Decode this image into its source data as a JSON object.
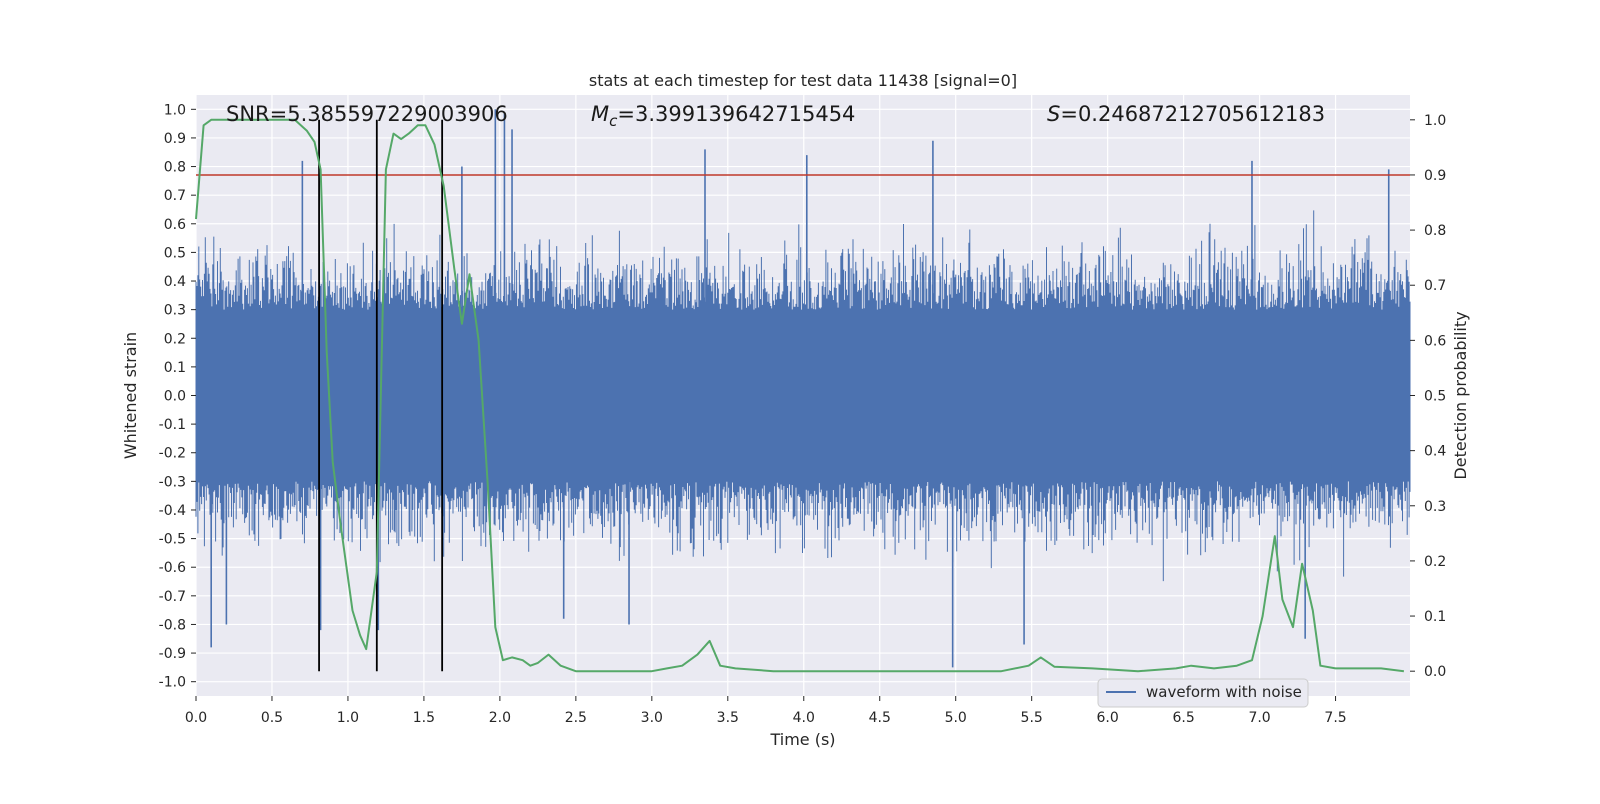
{
  "chart_data": {
    "type": "line",
    "title": "stats at each timestep for test data 11438 [signal=0]",
    "xlabel": "Time (s)",
    "ylabel": "Whitened strain",
    "y2label": "Detection probability",
    "xlim": [
      0.0,
      7.99
    ],
    "ylim": [
      -1.05,
      1.05
    ],
    "y2lim": [
      -0.045,
      1.045
    ],
    "x_ticks": [
      "0.0",
      "0.5",
      "1.0",
      "1.5",
      "2.0",
      "2.5",
      "3.0",
      "3.5",
      "4.0",
      "4.5",
      "5.0",
      "5.5",
      "6.0",
      "6.5",
      "7.0",
      "7.5"
    ],
    "y_ticks": [
      "1.0",
      "0.9",
      "0.8",
      "0.7",
      "0.6",
      "0.5",
      "0.4",
      "0.3",
      "0.2",
      "0.1",
      "0.0",
      "-0.1",
      "-0.2",
      "-0.3",
      "-0.4",
      "-0.5",
      "-0.6",
      "-0.7",
      "-0.8",
      "-0.9",
      "-1.0"
    ],
    "y2_ticks": [
      "1.0",
      "0.9",
      "0.8",
      "0.7",
      "0.6",
      "0.5",
      "0.4",
      "0.3",
      "0.2",
      "0.1",
      "0.0"
    ],
    "grid": true,
    "legend_position": "bottom-right",
    "annotations": {
      "snr": "SNR=5.385597229003906",
      "mc_symbol": "M",
      "mc_subscript": "c",
      "mc_value": "=3.399139642715454",
      "s_symbol": "S",
      "s_value": "=0.24687212705612183"
    },
    "threshold": {
      "y2": 0.9,
      "color": "#c0392b"
    },
    "vertical_lines": {
      "x": [
        0.81,
        1.19,
        1.62
      ],
      "y2_range": [
        0.0,
        1.0
      ],
      "color": "#000000"
    },
    "series": [
      {
        "name": "waveform with noise",
        "axis": "left",
        "color": "#4c72b0",
        "style": "dense noise",
        "samples": 16384,
        "core_band": [
          -0.3,
          0.3
        ],
        "peaks": [
          {
            "x": 0.1,
            "y": -0.88
          },
          {
            "x": 0.2,
            "y": -0.8
          },
          {
            "x": 0.7,
            "y": 0.82
          },
          {
            "x": 0.82,
            "y": -0.82
          },
          {
            "x": 1.2,
            "y": -0.82
          },
          {
            "x": 1.75,
            "y": 0.8
          },
          {
            "x": 1.97,
            "y": 1.0
          },
          {
            "x": 2.03,
            "y": 0.99
          },
          {
            "x": 2.08,
            "y": 0.93
          },
          {
            "x": 2.42,
            "y": -0.78
          },
          {
            "x": 2.85,
            "y": -0.8
          },
          {
            "x": 3.35,
            "y": 0.86
          },
          {
            "x": 4.02,
            "y": 0.84
          },
          {
            "x": 4.85,
            "y": 0.89
          },
          {
            "x": 4.98,
            "y": -0.95
          },
          {
            "x": 5.45,
            "y": -0.87
          },
          {
            "x": 6.95,
            "y": 0.82
          },
          {
            "x": 7.3,
            "y": -0.85
          },
          {
            "x": 7.85,
            "y": 0.79
          }
        ]
      },
      {
        "name": "detection probability",
        "axis": "right",
        "color": "#55a868",
        "points": [
          [
            0.0,
            0.82
          ],
          [
            0.05,
            0.99
          ],
          [
            0.1,
            1.0
          ],
          [
            0.2,
            1.0
          ],
          [
            0.4,
            1.0
          ],
          [
            0.55,
            1.0
          ],
          [
            0.65,
            1.0
          ],
          [
            0.73,
            0.98
          ],
          [
            0.78,
            0.96
          ],
          [
            0.82,
            0.91
          ],
          [
            0.86,
            0.58
          ],
          [
            0.9,
            0.38
          ],
          [
            0.95,
            0.27
          ],
          [
            1.03,
            0.11
          ],
          [
            1.08,
            0.065
          ],
          [
            1.12,
            0.04
          ],
          [
            1.19,
            0.18
          ],
          [
            1.25,
            0.91
          ],
          [
            1.3,
            0.975
          ],
          [
            1.35,
            0.965
          ],
          [
            1.4,
            0.975
          ],
          [
            1.46,
            0.99
          ],
          [
            1.51,
            0.99
          ],
          [
            1.57,
            0.955
          ],
          [
            1.63,
            0.88
          ],
          [
            1.7,
            0.73
          ],
          [
            1.75,
            0.63
          ],
          [
            1.8,
            0.72
          ],
          [
            1.86,
            0.6
          ],
          [
            1.92,
            0.34
          ],
          [
            1.97,
            0.08
          ],
          [
            2.02,
            0.02
          ],
          [
            2.08,
            0.025
          ],
          [
            2.15,
            0.02
          ],
          [
            2.2,
            0.01
          ],
          [
            2.25,
            0.015
          ],
          [
            2.32,
            0.03
          ],
          [
            2.4,
            0.01
          ],
          [
            2.5,
            0.0
          ],
          [
            2.7,
            0.0
          ],
          [
            3.0,
            0.0
          ],
          [
            3.1,
            0.005
          ],
          [
            3.2,
            0.01
          ],
          [
            3.3,
            0.03
          ],
          [
            3.38,
            0.055
          ],
          [
            3.45,
            0.01
          ],
          [
            3.55,
            0.005
          ],
          [
            3.8,
            0.0
          ],
          [
            4.1,
            0.0
          ],
          [
            4.4,
            0.0
          ],
          [
            4.8,
            0.0
          ],
          [
            5.0,
            0.0
          ],
          [
            5.3,
            0.0
          ],
          [
            5.48,
            0.01
          ],
          [
            5.56,
            0.025
          ],
          [
            5.65,
            0.008
          ],
          [
            5.9,
            0.005
          ],
          [
            6.2,
            0.0
          ],
          [
            6.45,
            0.005
          ],
          [
            6.55,
            0.01
          ],
          [
            6.7,
            0.005
          ],
          [
            6.85,
            0.01
          ],
          [
            6.95,
            0.02
          ],
          [
            7.02,
            0.1
          ],
          [
            7.1,
            0.245
          ],
          [
            7.15,
            0.13
          ],
          [
            7.22,
            0.08
          ],
          [
            7.28,
            0.195
          ],
          [
            7.35,
            0.11
          ],
          [
            7.4,
            0.01
          ],
          [
            7.5,
            0.005
          ],
          [
            7.8,
            0.005
          ],
          [
            7.95,
            0.0
          ]
        ]
      }
    ],
    "legend": {
      "entries": [
        {
          "label": "waveform with noise",
          "color": "#4c72b0"
        }
      ]
    }
  },
  "style": {
    "plot_background": "#eaeaf2",
    "grid_color": "#ffffff",
    "text_color": "#262626"
  }
}
